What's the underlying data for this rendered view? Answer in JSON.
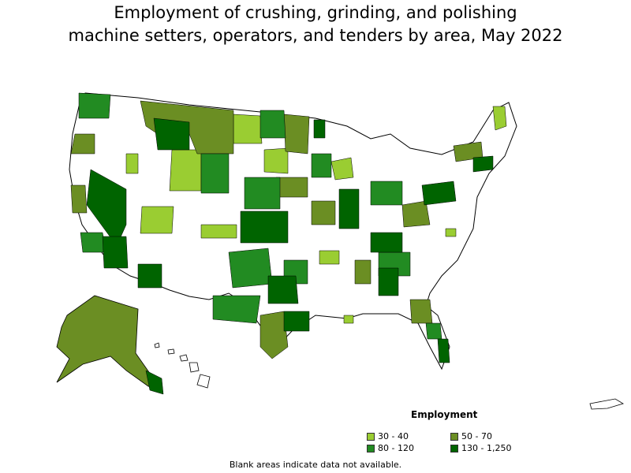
{
  "title": {
    "line1": "Employment of crushing, grinding, and polishing",
    "line2": "machine setters, operators, and tenders by area, May 2022"
  },
  "legend": {
    "title": "Employment",
    "items": [
      {
        "label": "30 - 40",
        "color": "#9acd32"
      },
      {
        "label": "50 - 70",
        "color": "#6b8e23"
      },
      {
        "label": "80 - 120",
        "color": "#228b22"
      },
      {
        "label": "130 - 1,250",
        "color": "#006400"
      }
    ]
  },
  "footnote": "Blank areas indicate data not available.",
  "colors": {
    "no_data": "#ffffff",
    "border": "#000000"
  }
}
